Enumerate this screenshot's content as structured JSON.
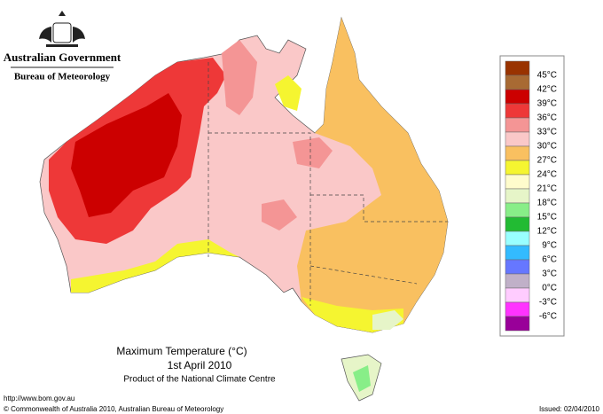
{
  "header": {
    "government": "Australian Government",
    "agency": "Bureau of Meteorology"
  },
  "legend": {
    "labels": [
      "45°C",
      "42°C",
      "39°C",
      "36°C",
      "33°C",
      "30°C",
      "27°C",
      "24°C",
      "21°C",
      "18°C",
      "15°C",
      "12°C",
      "9°C",
      "6°C",
      "3°C",
      "0°C",
      "-3°C",
      "-6°C"
    ],
    "colors": [
      "#993300",
      "#a86a33",
      "#cc0000",
      "#ee3838",
      "#f49595",
      "#fac8c8",
      "#f9c060",
      "#f5f530",
      "#fffccc",
      "#e6f5c8",
      "#88ee88",
      "#22bb33",
      "#99ffff",
      "#33bbff",
      "#6677ff",
      "#c0b0c8",
      "#ffccff",
      "#ff33ff",
      "#990099"
    ]
  },
  "caption": {
    "title": "Maximum Temperature (°C)",
    "date": "1st April 2010",
    "product": "Product of the National Climate Centre"
  },
  "footer": {
    "url": "http://www.bom.gov.au",
    "copyright": "© Commonwealth of Australia 2010, Australian Bureau of Meteorology",
    "issued": "Issued: 02/04/2010"
  }
}
